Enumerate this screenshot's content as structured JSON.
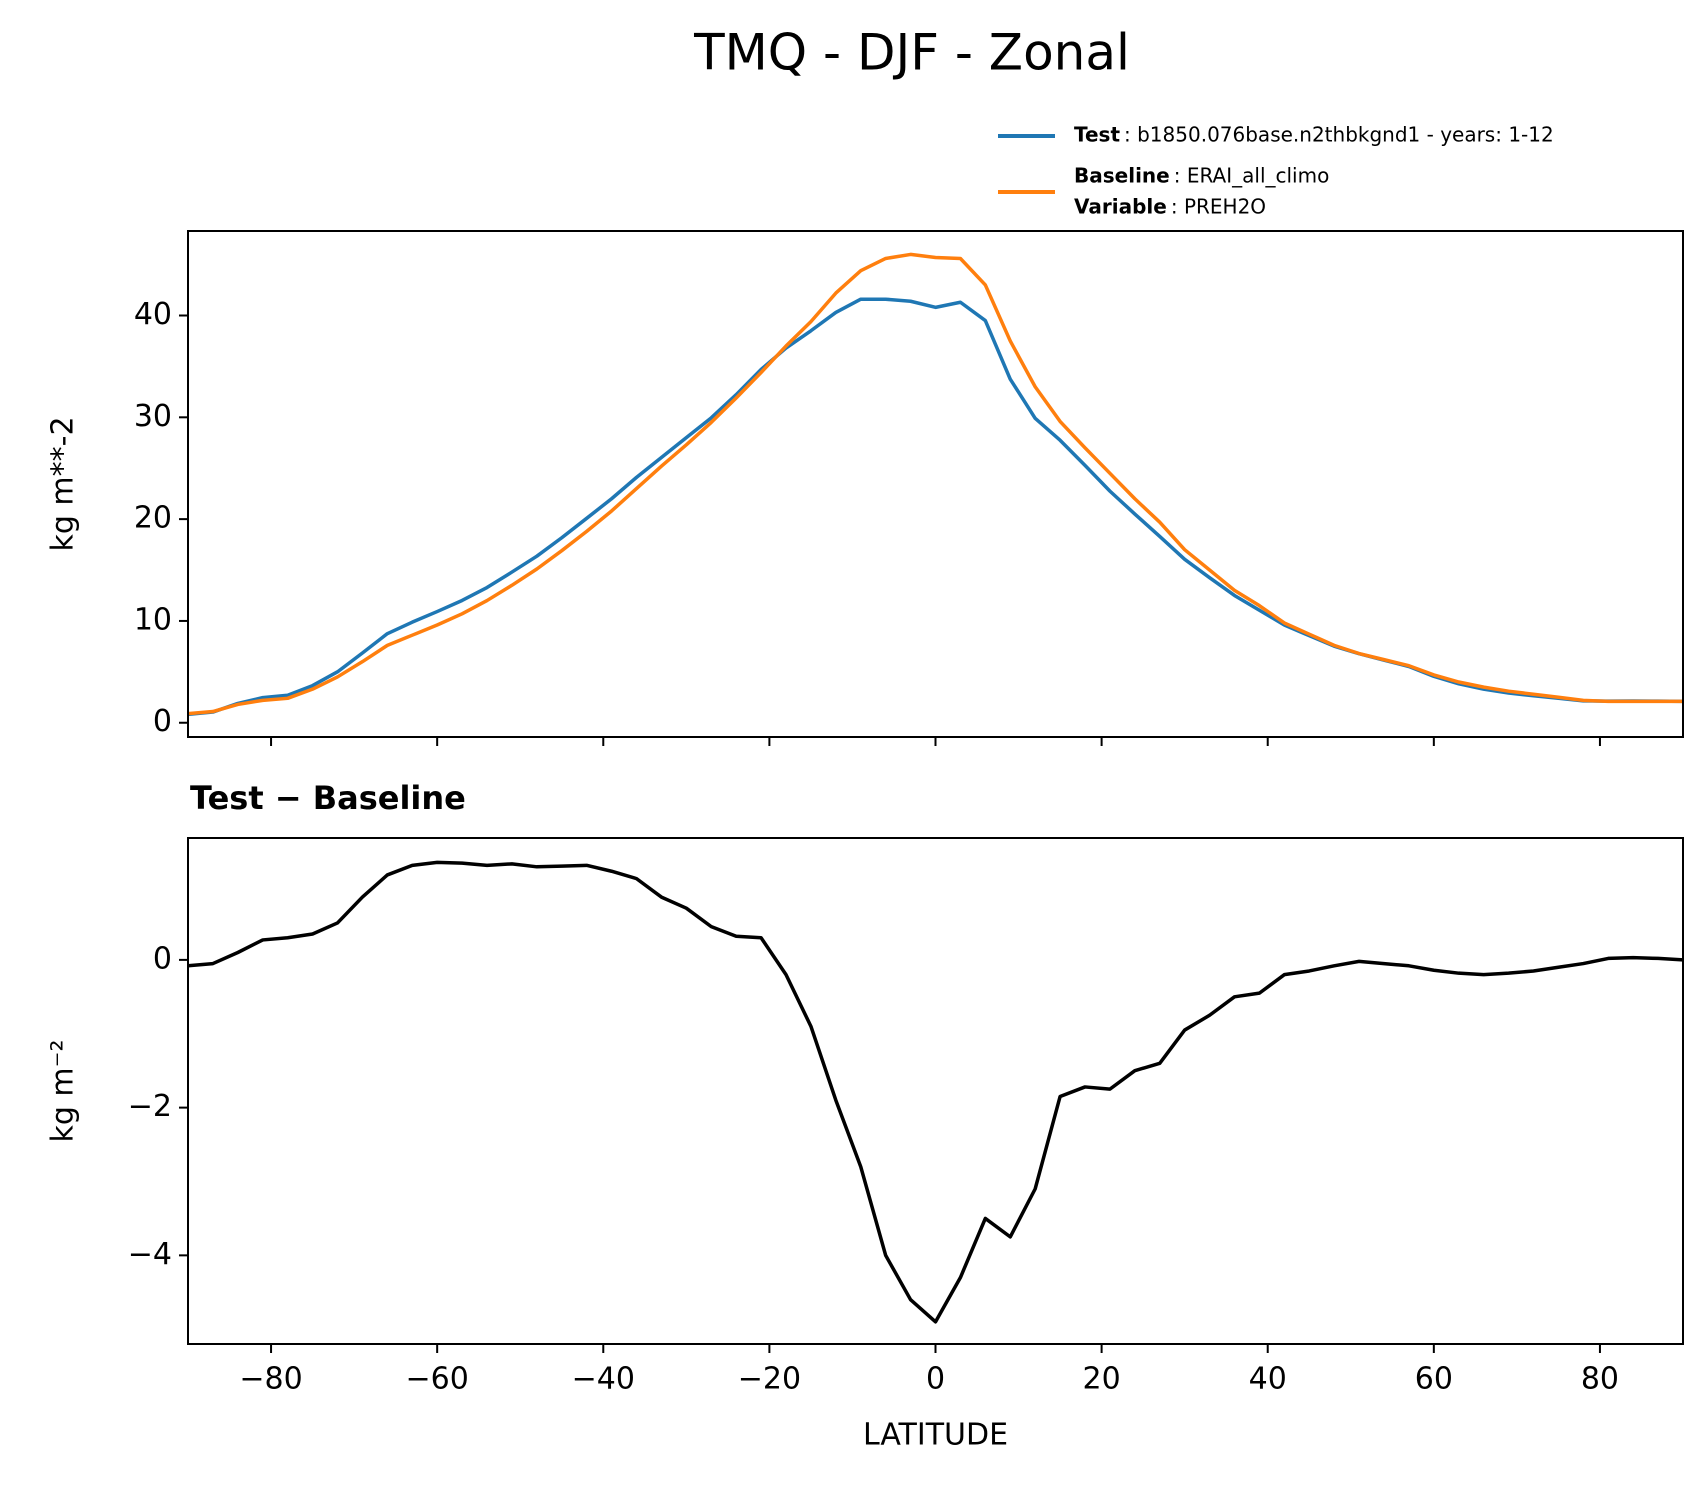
{
  "chart_data": [
    {
      "type": "line",
      "title": "TMQ - DJF - Zonal",
      "ylabel": "kg m**-2",
      "x": [
        -90,
        -87,
        -84,
        -81,
        -78,
        -75,
        -72,
        -69,
        -66,
        -63,
        -60,
        -57,
        -54,
        -51,
        -48,
        -45,
        -42,
        -39,
        -36,
        -33,
        -30,
        -27,
        -24,
        -21,
        -18,
        -15,
        -12,
        -9,
        -6,
        -3,
        0,
        3,
        6,
        9,
        12,
        15,
        18,
        21,
        24,
        27,
        30,
        33,
        36,
        39,
        42,
        45,
        48,
        51,
        54,
        57,
        60,
        63,
        66,
        69,
        72,
        75,
        78,
        81,
        84,
        87,
        90
      ],
      "series": [
        {
          "name": "Test",
          "description": ": b1850.076base.n2thbkgnd1 - years: 1-12",
          "color": "#1f77b4",
          "values": [
            0.82,
            1.05,
            1.9,
            2.47,
            2.7,
            3.65,
            5.0,
            6.85,
            8.75,
            9.88,
            10.92,
            12.01,
            13.28,
            14.8,
            16.36,
            18.17,
            20.08,
            22.0,
            24.1,
            26.05,
            28.0,
            29.95,
            32.22,
            34.7,
            36.8,
            38.5,
            40.3,
            41.6,
            41.6,
            41.4,
            40.8,
            41.3,
            39.5,
            33.75,
            29.9,
            27.75,
            25.28,
            22.75,
            20.5,
            18.3,
            16.05,
            14.25,
            12.5,
            11.05,
            9.6,
            8.55,
            7.52,
            6.78,
            6.15,
            5.52,
            4.56,
            3.82,
            3.3,
            2.92,
            2.65,
            2.4,
            2.15,
            2.12,
            2.13,
            2.12,
            2.1
          ]
        },
        {
          "name": "Baseline",
          "description": ": ERAI_all_climo",
          "color": "#ff7f0e",
          "values": [
            0.9,
            1.1,
            1.8,
            2.2,
            2.4,
            3.3,
            4.5,
            6.0,
            7.6,
            8.6,
            9.6,
            10.7,
            12.0,
            13.5,
            15.1,
            16.9,
            18.8,
            20.8,
            23.0,
            25.2,
            27.3,
            29.5,
            31.9,
            34.4,
            37.0,
            39.4,
            42.2,
            44.4,
            45.6,
            46.0,
            45.7,
            45.6,
            43.0,
            37.5,
            33.0,
            29.6,
            27.0,
            24.5,
            22.0,
            19.7,
            17.0,
            15.0,
            13.0,
            11.5,
            9.8,
            8.7,
            7.6,
            6.8,
            6.2,
            5.6,
            4.7,
            4.0,
            3.5,
            3.1,
            2.8,
            2.5,
            2.2,
            2.1,
            2.1,
            2.1,
            2.1
          ]
        }
      ],
      "variable": {
        "name": "Variable",
        "description": ": PREH2O"
      },
      "xlim": [
        -90,
        90
      ],
      "xticks": [
        -80,
        -60,
        -40,
        -20,
        0,
        20,
        40,
        60,
        80
      ],
      "ylim": [
        -1.4,
        48.3
      ],
      "yticks": [
        0,
        10,
        20,
        30,
        40
      ],
      "grid": false
    },
    {
      "type": "line",
      "title": "Test − Baseline",
      "ylabel": "kg m⁻²",
      "xlabel": "LATITUDE",
      "x": [
        -90,
        -87,
        -84,
        -81,
        -78,
        -75,
        -72,
        -69,
        -66,
        -63,
        -60,
        -57,
        -54,
        -51,
        -48,
        -45,
        -42,
        -39,
        -36,
        -33,
        -30,
        -27,
        -24,
        -21,
        -18,
        -15,
        -12,
        -9,
        -6,
        -3,
        0,
        3,
        6,
        9,
        12,
        15,
        18,
        21,
        24,
        27,
        30,
        33,
        36,
        39,
        42,
        45,
        48,
        51,
        54,
        57,
        60,
        63,
        66,
        69,
        72,
        75,
        78,
        81,
        84,
        87,
        90
      ],
      "series": [
        {
          "color": "#000000",
          "values": [
            -0.08,
            -0.05,
            0.1,
            0.27,
            0.3,
            0.35,
            0.5,
            0.85,
            1.15,
            1.28,
            1.32,
            1.31,
            1.28,
            1.3,
            1.26,
            1.27,
            1.28,
            1.2,
            1.1,
            0.85,
            0.7,
            0.45,
            0.32,
            0.3,
            -0.2,
            -0.9,
            -1.9,
            -2.8,
            -4.0,
            -4.6,
            -4.9,
            -4.3,
            -3.5,
            -3.75,
            -3.1,
            -1.85,
            -1.72,
            -1.75,
            -1.5,
            -1.4,
            -0.95,
            -0.75,
            -0.5,
            -0.45,
            -0.2,
            -0.15,
            -0.08,
            -0.02,
            -0.05,
            -0.08,
            -0.14,
            -0.18,
            -0.2,
            -0.18,
            -0.15,
            -0.1,
            -0.05,
            0.02,
            0.03,
            0.02,
            0.0
          ]
        }
      ],
      "xlim": [
        -90,
        90
      ],
      "xticks": [
        {
          "value": -80,
          "label": "−80"
        },
        {
          "value": -60,
          "label": "−60"
        },
        {
          "value": -40,
          "label": "−40"
        },
        {
          "value": -20,
          "label": "−20"
        },
        0,
        20,
        40,
        60,
        80
      ],
      "ylim": [
        -5.2,
        1.65
      ],
      "yticks": [
        {
          "value": -4,
          "label": "−4"
        },
        {
          "value": -2,
          "label": "−2"
        },
        0
      ],
      "grid": false
    }
  ]
}
